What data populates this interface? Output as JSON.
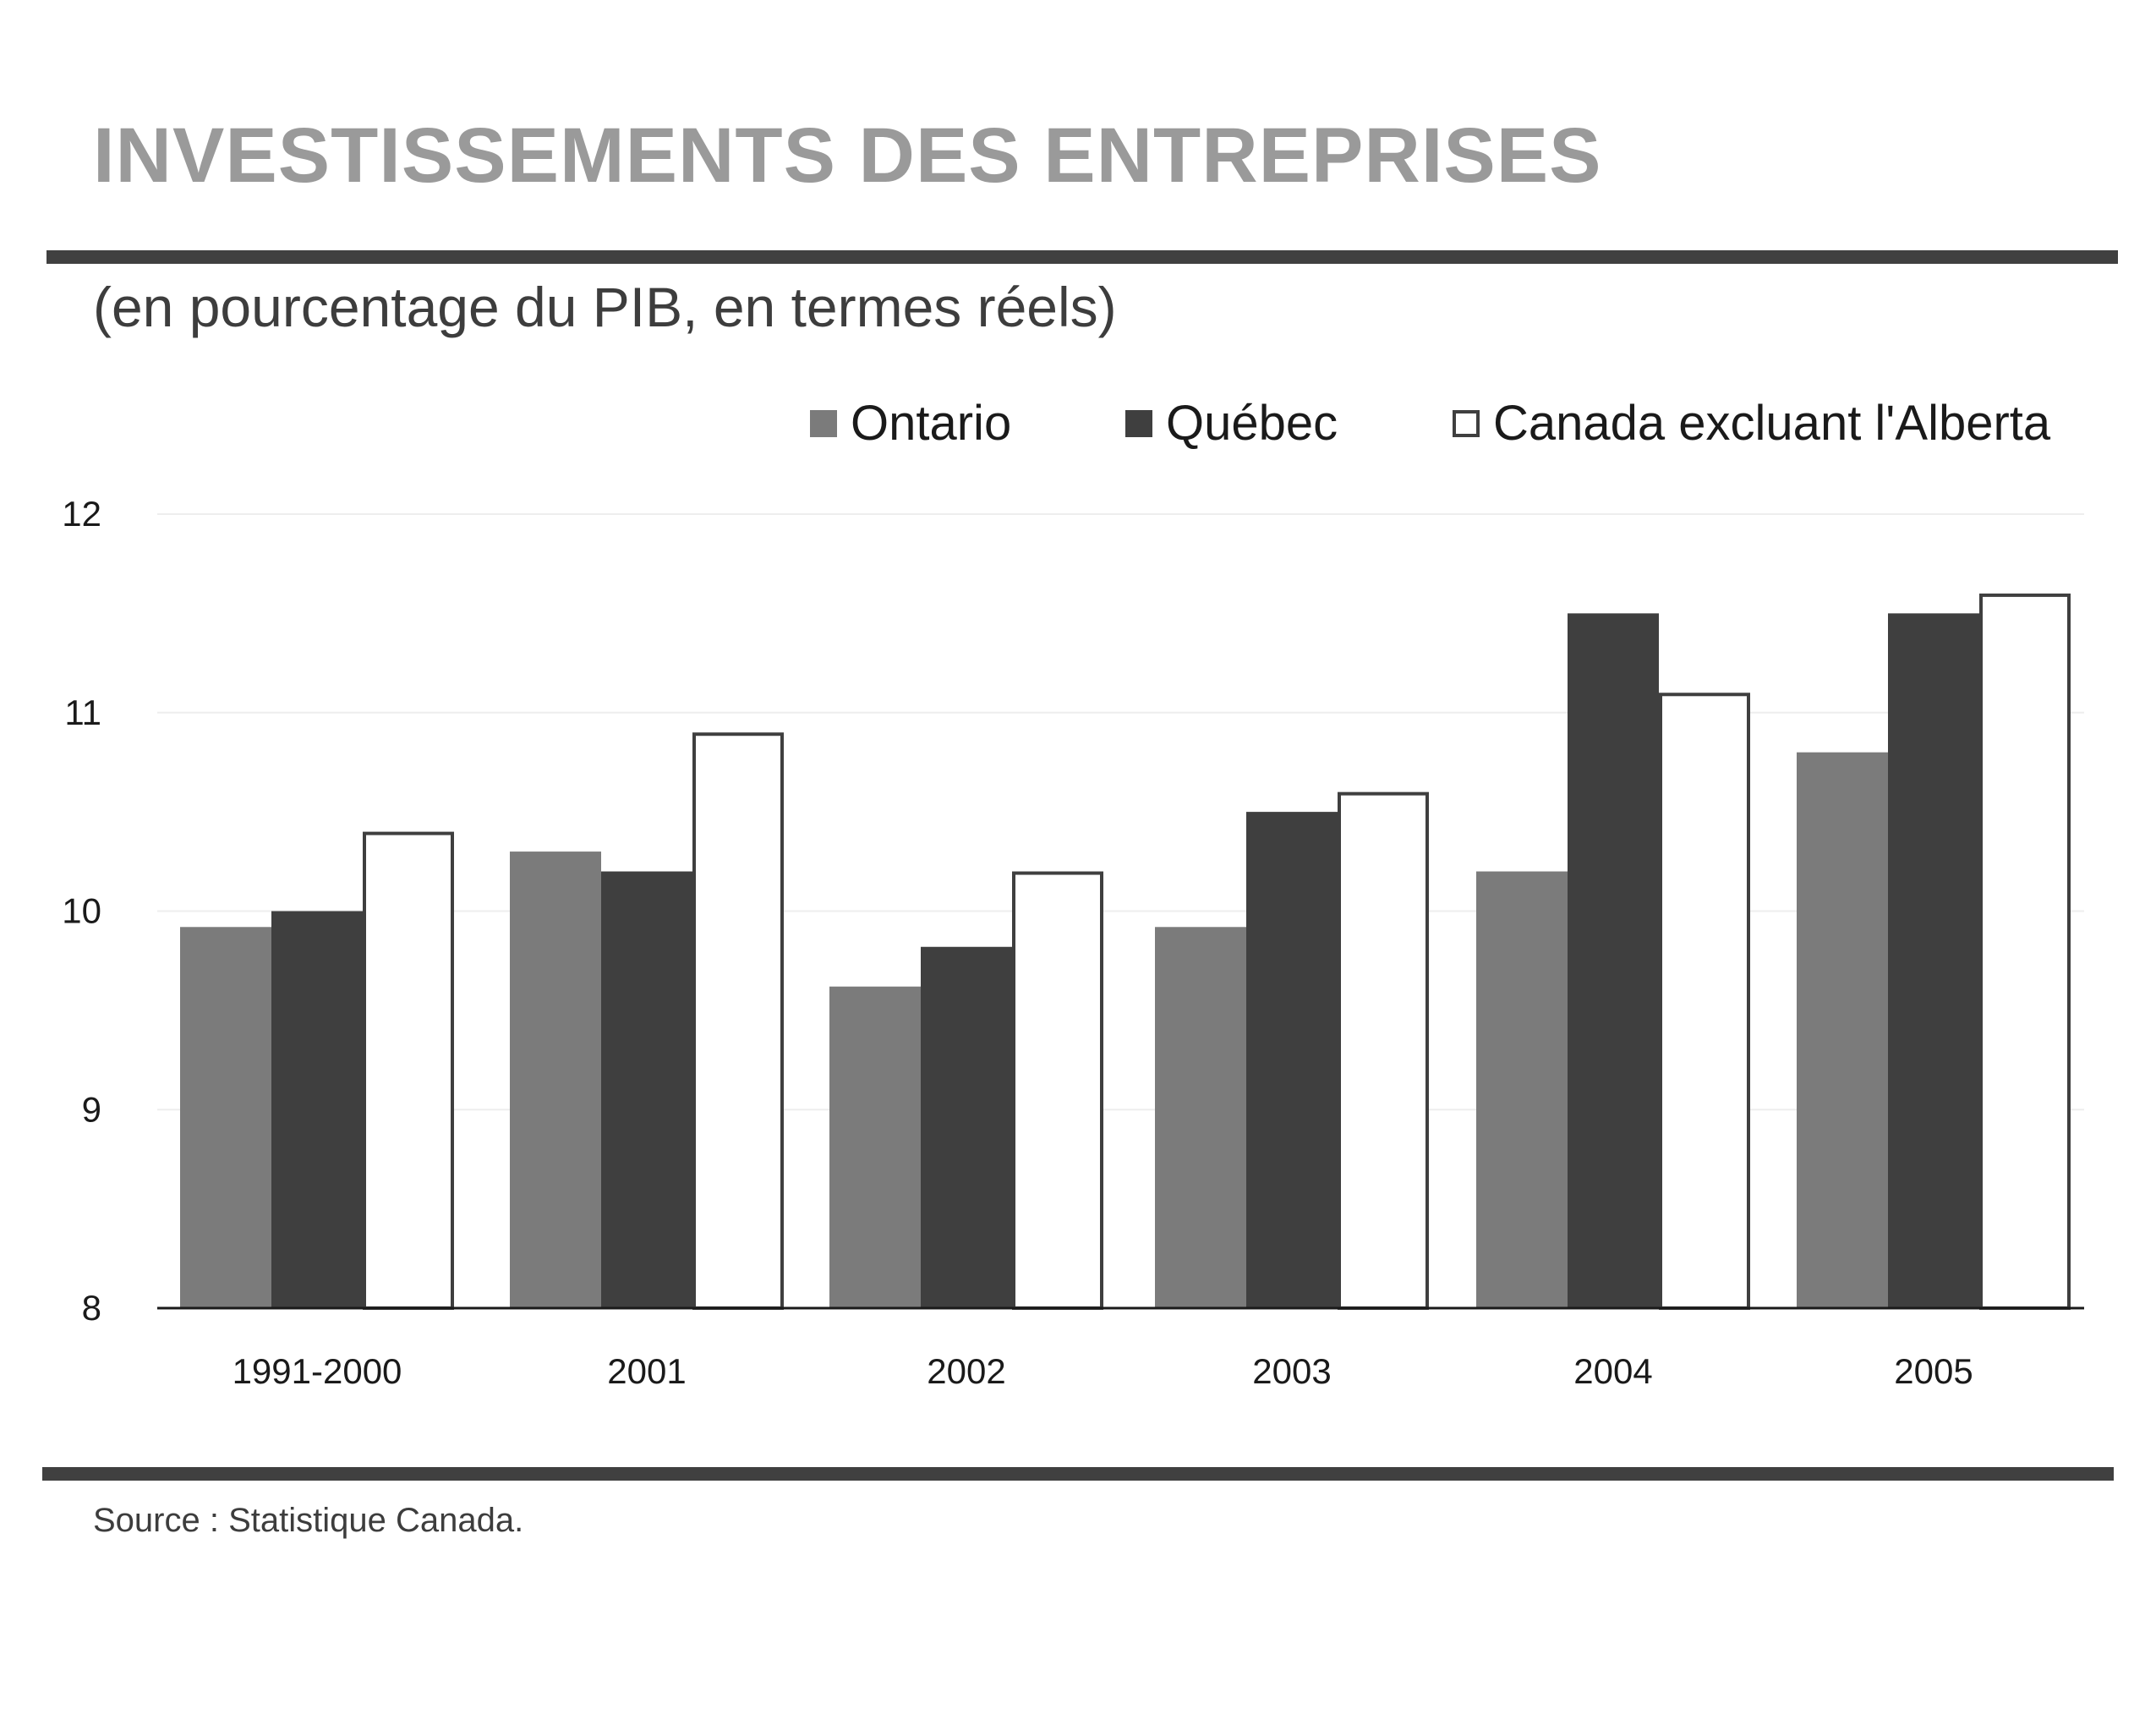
{
  "header": {
    "title": "INVESTISSEMENTS DES ENTREPRISES",
    "subtitle": "(en pourcentage du PIB, en termes réels)"
  },
  "footer": {
    "source": "Source :  Statistique Canada."
  },
  "colors": {
    "ontario": "#7b7b7b",
    "quebec": "#3f3f3f",
    "canada": "#ffffff",
    "outline": "#3f3f3f",
    "title": "#9a9a9a",
    "text": "#3d3d3d",
    "gridline": "#eeeeee"
  },
  "chart_data": {
    "type": "bar",
    "title": "INVESTISSEMENTS DES ENTREPRISES",
    "subtitle": "(en pourcentage du PIB, en termes réels)",
    "xlabel": "",
    "ylabel": "",
    "categories": [
      "1991-2000",
      "2001",
      "2002",
      "2003",
      "2004",
      "2005"
    ],
    "series": [
      {
        "name": "Ontario",
        "values": [
          9.92,
          10.3,
          9.62,
          9.92,
          10.2,
          10.8
        ]
      },
      {
        "name": "Québec",
        "values": [
          10.0,
          10.2,
          9.82,
          10.5,
          11.5,
          11.5
        ]
      },
      {
        "name": "Canada excluant l'Alberta",
        "values": [
          10.4,
          10.9,
          10.2,
          10.6,
          11.1,
          11.6
        ]
      }
    ],
    "ylim": [
      8,
      12
    ],
    "yticks": [
      "8",
      "9",
      "10",
      "11",
      "12"
    ],
    "grid": true,
    "legend_position": "top-right"
  }
}
